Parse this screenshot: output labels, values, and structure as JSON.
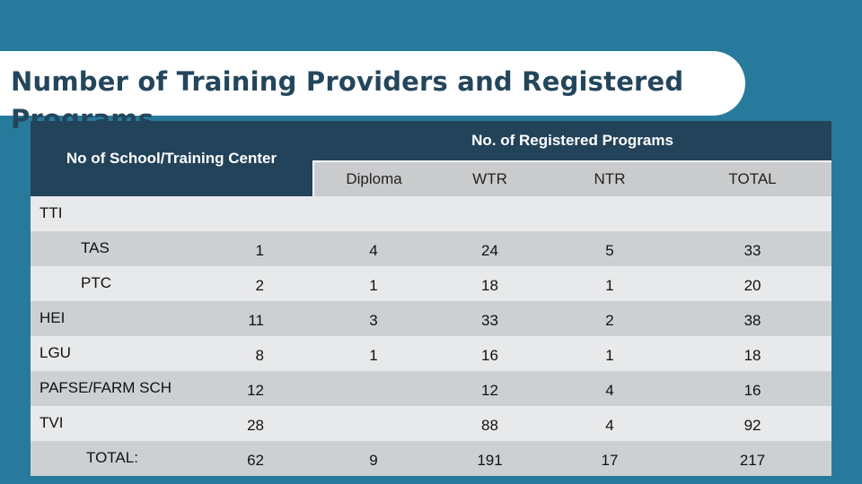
{
  "slide": {
    "title": "Number of Training Providers and Registered Programs"
  },
  "table": {
    "header_school": "No of School/Training Center",
    "header_programs": "No. of Registered Programs",
    "sub_headers": [
      "Diploma",
      "WTR",
      "NTR",
      "TOTAL"
    ],
    "rows": [
      {
        "label": "TTI",
        "schools": "",
        "diploma": "",
        "wtr": "",
        "ntr": "",
        "total": ""
      },
      {
        "label": "TAS",
        "schools": "1",
        "diploma": "4",
        "wtr": "24",
        "ntr": "5",
        "total": "33"
      },
      {
        "label": "PTC",
        "schools": "2",
        "diploma": "1",
        "wtr": "18",
        "ntr": "1",
        "total": "20"
      },
      {
        "label": "HEI",
        "schools": "11",
        "diploma": "3",
        "wtr": "33",
        "ntr": "2",
        "total": "38"
      },
      {
        "label": "LGU",
        "schools": "8",
        "diploma": "1",
        "wtr": "16",
        "ntr": "1",
        "total": "18"
      },
      {
        "label": "PAFSE/FARM SCH",
        "schools": "12",
        "diploma": "",
        "wtr": "12",
        "ntr": "4",
        "total": "16"
      },
      {
        "label": "TVI",
        "schools": "28",
        "diploma": "",
        "wtr": "88",
        "ntr": "4",
        "total": "92"
      },
      {
        "label": "TOTAL:",
        "schools": "62",
        "diploma": "9",
        "wtr": "191",
        "ntr": "17",
        "total": "217"
      }
    ]
  },
  "colors": {
    "background": "#277a9b",
    "header_dark": "#23435a",
    "title_text": "#23465c"
  }
}
